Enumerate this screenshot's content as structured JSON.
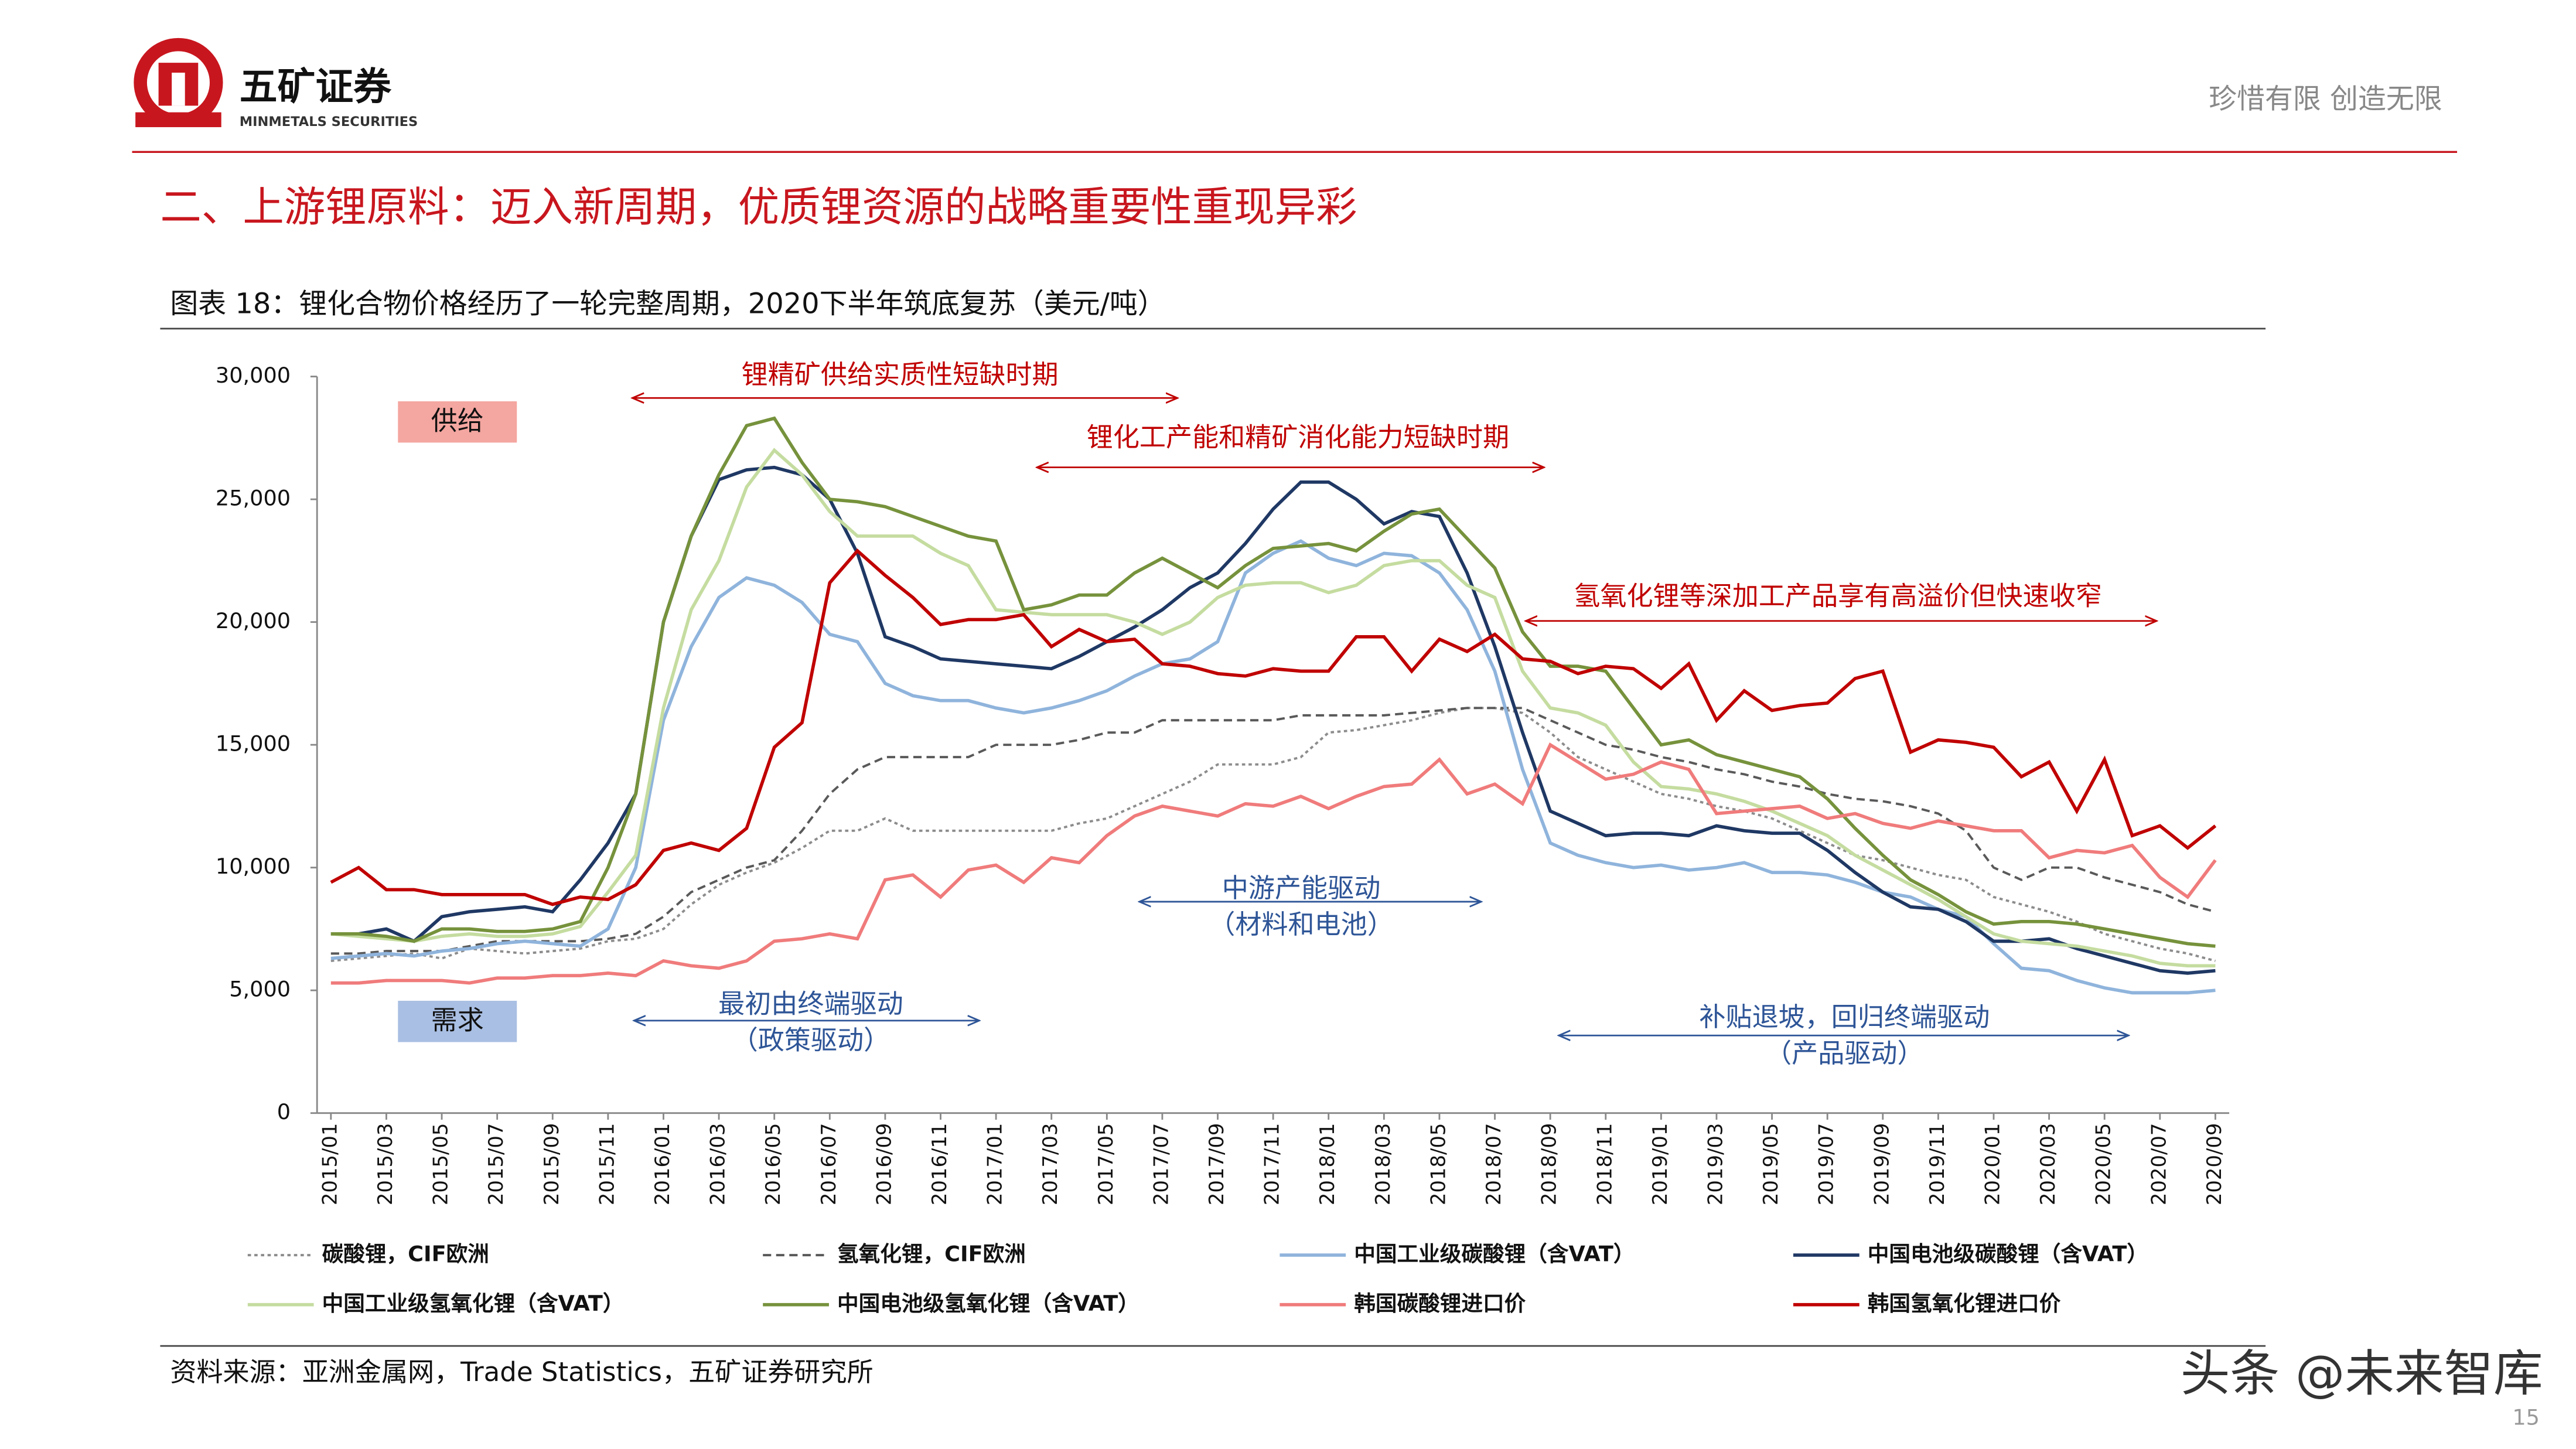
{
  "header": {
    "brand": "五矿证券",
    "brand_en": "MINMETALS SECURITIES",
    "slogan": "珍惜有限  创造无限"
  },
  "section_title": "二、上游锂原料：迈入新周期，优质锂资源的战略重要性重现异彩",
  "chart_data": {
    "type": "line",
    "title": "图表 18：锂化合物价格经历了一轮完整周期，2020下半年筑底复苏（美元/吨）",
    "categories": [
      "2015/01",
      null,
      "2015/03",
      null,
      "2015/05",
      null,
      "2015/07",
      null,
      "2015/09",
      null,
      "2015/11",
      null,
      "2016/01",
      null,
      "2016/03",
      null,
      "2016/05",
      null,
      "2016/07",
      null,
      "2016/09",
      null,
      "2016/11",
      null,
      "2017/01",
      null,
      "2017/03",
      null,
      "2017/05",
      null,
      "2017/07",
      null,
      "2017/09",
      null,
      "2017/11",
      null,
      "2018/01",
      null,
      "2018/03",
      null,
      "2018/05",
      null,
      "2018/07",
      null,
      "2018/09",
      null,
      "2018/11",
      null,
      "2019/01",
      null,
      "2019/03",
      null,
      "2019/05",
      null,
      "2019/07",
      null,
      "2019/09",
      null,
      "2019/11",
      null,
      "2020/01",
      null,
      "2020/03",
      null,
      "2020/05",
      null,
      "2020/07",
      null,
      "2020/09"
    ],
    "ylim": [
      0,
      30000
    ],
    "yticks": [
      0,
      {
        "value": 5000,
        "label": "5,000"
      },
      {
        "value": 10000,
        "label": "10,000"
      },
      {
        "value": 15000,
        "label": "15,000"
      },
      {
        "value": 20000,
        "label": "20,000"
      },
      {
        "value": 25000,
        "label": "25,000"
      },
      {
        "value": 30000,
        "label": "30,000"
      }
    ],
    "series": [
      {
        "name": "碳酸锂，CIF欧洲",
        "color": "#8c8c8c",
        "style": "dotted",
        "values": [
          6200,
          6300,
          6400,
          6500,
          6300,
          6700,
          6600,
          6500,
          6600,
          6700,
          7000,
          7100,
          7500,
          8500,
          9300,
          9800,
          10200,
          10800,
          11500,
          11500,
          12000,
          11500,
          11500,
          11500,
          11500,
          11500,
          11500,
          11800,
          12000,
          12500,
          13000,
          13500,
          14200,
          14200,
          14200,
          14500,
          15500,
          15600,
          15800,
          16000,
          16300,
          16500,
          16500,
          16300,
          15500,
          14500,
          14000,
          13500,
          13000,
          12800,
          12500,
          12300,
          12000,
          11500,
          11000,
          10500,
          10300,
          10000,
          9700,
          9500,
          8800,
          8500,
          8200,
          7800,
          7300,
          7000,
          6700,
          6500,
          6200
        ]
      },
      {
        "name": "氢氧化锂，CIF欧洲",
        "color": "#595959",
        "style": "dashed",
        "values": [
          6500,
          6500,
          6600,
          6600,
          6600,
          6800,
          7000,
          7000,
          7000,
          7000,
          7100,
          7300,
          8000,
          9000,
          9500,
          10000,
          10300,
          11500,
          13000,
          14000,
          14500,
          14500,
          14500,
          14500,
          15000,
          15000,
          15000,
          15200,
          15500,
          15500,
          16000,
          16000,
          16000,
          16000,
          16000,
          16200,
          16200,
          16200,
          16200,
          16300,
          16400,
          16500,
          16500,
          16500,
          16000,
          15500,
          15000,
          14800,
          14500,
          14300,
          14000,
          13800,
          13500,
          13300,
          13000,
          12800,
          12700,
          12500,
          12200,
          11500,
          10000,
          9500,
          10000,
          10000,
          9600,
          9300,
          9000,
          8500,
          8200
        ]
      },
      {
        "name": "中国工业级碳酸锂（含VAT）",
        "color": "#8fb4dc",
        "style": "solid",
        "values": [
          6300,
          6400,
          6500,
          6400,
          6600,
          6700,
          6900,
          7000,
          6900,
          6800,
          7500,
          10000,
          16000,
          19000,
          21000,
          21800,
          21500,
          20800,
          19500,
          19200,
          17500,
          17000,
          16800,
          16800,
          16500,
          16300,
          16500,
          16800,
          17200,
          17800,
          18300,
          18500,
          19200,
          22000,
          22800,
          23300,
          22600,
          22300,
          22800,
          22700,
          22000,
          20500,
          18000,
          14000,
          11000,
          10500,
          10200,
          10000,
          10100,
          9900,
          10000,
          10200,
          9800,
          9800,
          9700,
          9400,
          9000,
          8800,
          8300,
          8000,
          6900,
          5900,
          5800,
          5400,
          5100,
          4900,
          4900,
          4900,
          5000
        ]
      },
      {
        "name": "中国电池级碳酸锂（含VAT）",
        "color": "#1f3864",
        "style": "solid",
        "values": [
          7300,
          7300,
          7500,
          7000,
          8000,
          8200,
          8300,
          8400,
          8200,
          9500,
          11000,
          13000,
          20000,
          23500,
          25800,
          26200,
          26300,
          26000,
          25000,
          22800,
          19400,
          19000,
          18500,
          18400,
          18300,
          18200,
          18100,
          18600,
          19200,
          19800,
          20500,
          21400,
          22000,
          23200,
          24600,
          25700,
          25700,
          25000,
          24000,
          24500,
          24300,
          22000,
          19000,
          15500,
          12300,
          11800,
          11300,
          11400,
          11400,
          11300,
          11700,
          11500,
          11400,
          11400,
          10700,
          9800,
          9000,
          8400,
          8300,
          7800,
          7000,
          7000,
          7100,
          6700,
          6400,
          6100,
          5800,
          5700,
          5800
        ]
      },
      {
        "name": "中国工业级氢氧化锂（含VAT）",
        "color": "#c5dca0",
        "style": "solid",
        "values": [
          7300,
          7200,
          7100,
          7000,
          7200,
          7300,
          7200,
          7200,
          7300,
          7600,
          9000,
          10500,
          16500,
          20500,
          22500,
          25500,
          27000,
          26000,
          24500,
          23500,
          23500,
          23500,
          22800,
          22300,
          20500,
          20400,
          20300,
          20300,
          20300,
          20000,
          19500,
          20000,
          21000,
          21500,
          21600,
          21600,
          21200,
          21500,
          22300,
          22500,
          22500,
          21500,
          21000,
          18000,
          16500,
          16300,
          15800,
          14300,
          13300,
          13200,
          13000,
          12700,
          12300,
          11800,
          11300,
          10500,
          9900,
          9300,
          8700,
          8000,
          7300,
          7000,
          6900,
          6800,
          6600,
          6400,
          6100,
          6000,
          6000
        ]
      },
      {
        "name": "中国电池级氢氧化锂（含VAT）",
        "color": "#76923c",
        "style": "solid",
        "values": [
          7300,
          7300,
          7200,
          7000,
          7500,
          7500,
          7400,
          7400,
          7500,
          7800,
          10000,
          13000,
          20000,
          23500,
          26000,
          28000,
          28300,
          26500,
          25000,
          24900,
          24700,
          24300,
          23900,
          23500,
          23300,
          20500,
          20700,
          21100,
          21100,
          22000,
          22600,
          22000,
          21400,
          22300,
          23000,
          23100,
          23200,
          22900,
          23700,
          24400,
          24600,
          23400,
          22200,
          19600,
          18200,
          18200,
          18000,
          16500,
          15000,
          15200,
          14600,
          14300,
          14000,
          13700,
          12800,
          11600,
          10500,
          9500,
          8900,
          8200,
          7700,
          7800,
          7800,
          7700,
          7500,
          7300,
          7100,
          6900,
          6800
        ]
      },
      {
        "name": "韩国碳酸锂进口价",
        "color": "#f07b7b",
        "style": "solid",
        "values": [
          5300,
          5300,
          5400,
          5400,
          5400,
          5300,
          5500,
          5500,
          5600,
          5600,
          5700,
          5600,
          6200,
          6000,
          5900,
          6200,
          7000,
          7100,
          7300,
          7100,
          9500,
          9700,
          8800,
          9900,
          10100,
          9400,
          10400,
          10200,
          11300,
          12100,
          12500,
          12300,
          12100,
          12600,
          12500,
          12900,
          12400,
          12900,
          13300,
          13400,
          14400,
          13000,
          13400,
          12600,
          15000,
          14300,
          13600,
          13800,
          14300,
          14000,
          12200,
          12300,
          12400,
          12500,
          12000,
          12200,
          11800,
          11600,
          11900,
          11700,
          11500,
          11500,
          10400,
          10700,
          10600,
          10900,
          9600,
          8800,
          10300
        ]
      },
      {
        "name": "韩国氢氧化锂进口价",
        "color": "#c00000",
        "style": "solid",
        "values": [
          9400,
          10000,
          9100,
          9100,
          8900,
          8900,
          8900,
          8900,
          8500,
          8800,
          8700,
          9300,
          10700,
          11000,
          10700,
          11600,
          14900,
          15900,
          21600,
          22900,
          21900,
          21000,
          19900,
          20100,
          20100,
          20300,
          19000,
          19700,
          19200,
          19300,
          18300,
          18200,
          17900,
          17800,
          18100,
          18000,
          18000,
          19400,
          19400,
          18000,
          19300,
          18800,
          19500,
          18500,
          18400,
          17900,
          18200,
          18100,
          17300,
          18300,
          16000,
          17200,
          16400,
          16600,
          16700,
          17700,
          18000,
          14700,
          15200,
          15100,
          14900,
          13700,
          14300,
          12300,
          14400,
          11300,
          11700,
          10800,
          11700
        ]
      }
    ],
    "side_labels": [
      "供给",
      "需求"
    ],
    "annotations": [
      {
        "text": "锂精矿供给实质性短缺时期"
      },
      {
        "text": "锂化工产能和精矿消化能力短缺时期"
      },
      {
        "text": "氢氧化锂等深加工产品享有高溢价但快速收窄"
      },
      {
        "text": "中游产能驱动",
        "subtext": "（材料和电池）"
      },
      {
        "text": "最初由终端驱动",
        "subtext": "（政策驱动）"
      },
      {
        "text": "补贴退坡，回归终端驱动",
        "subtext": "（产品驱动）"
      }
    ]
  },
  "source": "资料来源：亚洲金属网，Trade Statistics，五矿证券研究所",
  "watermark": "头条 @未来智库",
  "page_number": "15"
}
